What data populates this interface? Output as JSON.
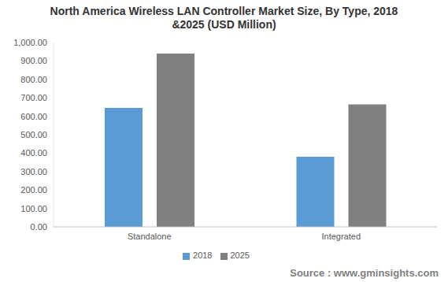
{
  "chart_data": {
    "type": "bar",
    "title": "North America Wireless LAN Controller Market Size, By Type, 2018 &2025 (USD Million)",
    "source": "Source : www.gminsights.com",
    "categories": [
      "Standalone",
      "Integrated"
    ],
    "series": [
      {
        "name": "2018",
        "color": "#5b9bd5",
        "values": [
          645,
          380
        ]
      },
      {
        "name": "2025",
        "color": "#808080",
        "values": [
          940,
          665
        ]
      }
    ],
    "ylim": [
      0,
      1000
    ],
    "yticks": [
      {
        "value": 0,
        "label": "0.00"
      },
      {
        "value": 100,
        "label": "100.00"
      },
      {
        "value": 200,
        "label": "200.00"
      },
      {
        "value": 300,
        "label": "300.00"
      },
      {
        "value": 400,
        "label": "400.00"
      },
      {
        "value": 500,
        "label": "500.00"
      },
      {
        "value": 600,
        "label": "600.00"
      },
      {
        "value": 700,
        "label": "700.00"
      },
      {
        "value": 800,
        "label": "800.00"
      },
      {
        "value": 900,
        "label": "900.00"
      },
      {
        "value": 1000,
        "label": "1,000.00"
      }
    ],
    "grid": false,
    "legend": "bottom"
  }
}
